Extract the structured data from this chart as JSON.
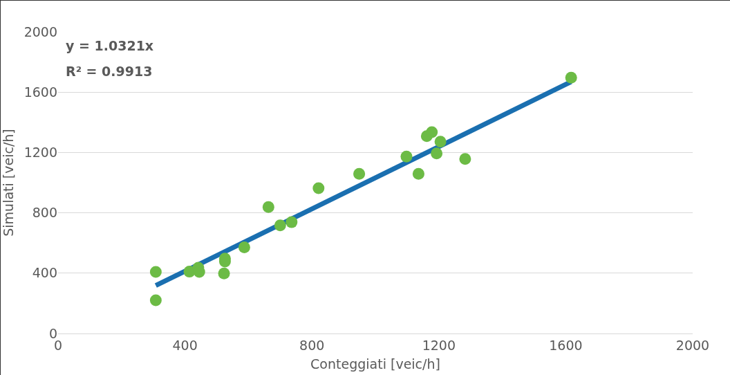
{
  "chart_data": {
    "type": "scatter",
    "xlabel": "Conteggiati [veic/h]",
    "ylabel": "Simulati [veic/h]",
    "annotations": [
      "y = 1.0321x",
      "R² = 0.9913"
    ],
    "xlim": [
      0,
      2000
    ],
    "xticks": [
      0,
      400,
      800,
      1200,
      1600,
      2000
    ],
    "ylim": [
      0,
      2000
    ],
    "yticks": [
      0,
      400,
      800,
      1200,
      1600,
      2000
    ],
    "grid": "y",
    "legend": false,
    "marker": "circle",
    "series": [
      {
        "type": "line",
        "color": "#1a6fb0",
        "marker": "none",
        "x": [
          308,
          1617
        ],
        "values": [
          318,
          1669
        ]
      },
      {
        "color": "#6cbb45",
        "x": [
          308,
          308,
          414,
          442,
          445,
          523,
          526,
          526,
          587,
          663,
          700,
          736,
          821,
          949,
          1098,
          1136,
          1162,
          1178,
          1193,
          1205,
          1283,
          1617
        ],
        "values": [
          408,
          220,
          410,
          436,
          408,
          398,
          497,
          477,
          571,
          838,
          717,
          738,
          963,
          1058,
          1173,
          1058,
          1309,
          1335,
          1194,
          1272,
          1157,
          1696
        ]
      }
    ]
  }
}
